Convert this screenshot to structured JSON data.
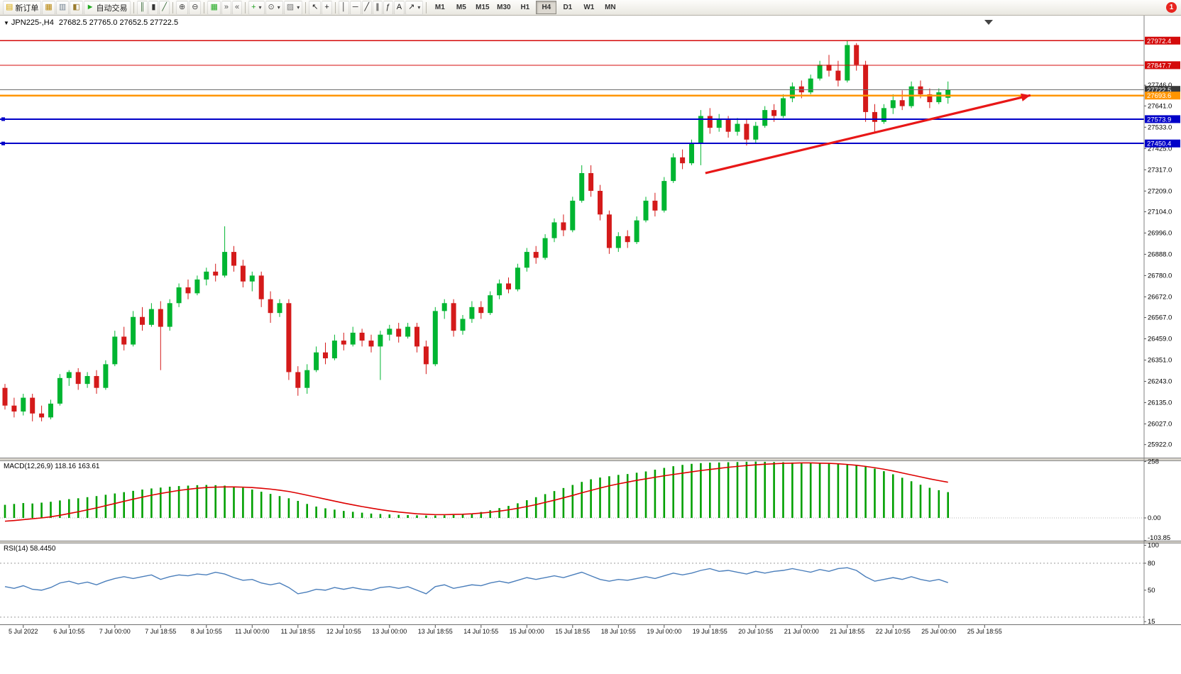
{
  "toolbar": {
    "notification_badge": "1",
    "active_timeframe": "H4",
    "timeframes": [
      "M1",
      "M5",
      "M15",
      "M30",
      "H1",
      "H4",
      "D1",
      "W1",
      "MN"
    ],
    "buttons": [
      {
        "name": "new-order-button",
        "label": "新订单",
        "glyph": "▤",
        "color": "#d7a500"
      },
      {
        "name": "new-chart-button",
        "glyph": "▦",
        "color": "#b8860b"
      },
      {
        "name": "profiles-button",
        "glyph": "▥",
        "color": "#708090"
      },
      {
        "name": "market-watch-button",
        "glyph": "◧",
        "color": "#9a7b2d"
      },
      {
        "name": "auto-trading-button",
        "label": "自动交易",
        "glyph": "►",
        "color": "#22aa22"
      },
      {
        "sep": true
      },
      {
        "name": "bar-chart-button",
        "glyph": "║",
        "color": "#336633"
      },
      {
        "name": "candlestick-chart-button",
        "glyph": "▮",
        "color": "#333333"
      },
      {
        "name": "line-chart-button",
        "glyph": "╱",
        "color": "#336633"
      },
      {
        "sep": true
      },
      {
        "name": "zoom-in-button",
        "glyph": "⊕",
        "color": "#444444"
      },
      {
        "name": "zoom-out-button",
        "glyph": "⊖",
        "color": "#444444"
      },
      {
        "sep": true
      },
      {
        "name": "tile-windows-button",
        "glyph": "▦",
        "color": "#22aa22"
      },
      {
        "name": "auto-scroll-button",
        "glyph": "»",
        "color": "#555555"
      },
      {
        "name": "chart-shift-button",
        "glyph": "«",
        "color": "#555555"
      },
      {
        "sep": true
      },
      {
        "name": "indicators-button",
        "glyph": "+",
        "color": "#1e9e1e",
        "caret": true
      },
      {
        "name": "periods-button",
        "glyph": "⊙",
        "color": "#555555",
        "caret": true
      },
      {
        "name": "templates-button",
        "glyph": "▨",
        "color": "#777777",
        "caret": true
      },
      {
        "sep": true
      },
      {
        "name": "cursor-button",
        "glyph": "↖",
        "color": "#222222"
      },
      {
        "name": "crosshair-button",
        "glyph": "+",
        "color": "#222222"
      },
      {
        "sep": true
      },
      {
        "name": "vertical-line-button",
        "glyph": "│",
        "color": "#222222"
      },
      {
        "name": "horizontal-line-button",
        "glyph": "─",
        "color": "#222222"
      },
      {
        "name": "trendline-button",
        "glyph": "╱",
        "color": "#222222"
      },
      {
        "name": "channel-button",
        "glyph": "∥",
        "color": "#222222"
      },
      {
        "name": "fibonacci-button",
        "glyph": "ƒ",
        "color": "#222222"
      },
      {
        "name": "text-button",
        "glyph": "A",
        "color": "#222222"
      },
      {
        "name": "arrows-button",
        "glyph": "↗",
        "color": "#222222",
        "caret": true
      },
      {
        "sep": true
      },
      {
        "type": "timeframes"
      }
    ]
  },
  "chart": {
    "title": "JPN225-,H4",
    "ohlc_text": "27682.5 27765.0 27652.5 27722.5"
  },
  "chart_data": {
    "type": "candlestick",
    "symbol": "JPN225-",
    "timeframe": "H4",
    "colors": {
      "bull": "#00b531",
      "bear": "#d41a1a"
    },
    "candles": [
      [
        26210,
        26230,
        26100,
        26120
      ],
      [
        26120,
        26160,
        26060,
        26090
      ],
      [
        26090,
        26180,
        26070,
        26160
      ],
      [
        26160,
        26180,
        26040,
        26080
      ],
      [
        26080,
        26120,
        26040,
        26060
      ],
      [
        26060,
        26150,
        26050,
        26130
      ],
      [
        26130,
        26280,
        26120,
        26260
      ],
      [
        26260,
        26300,
        26220,
        26290
      ],
      [
        26290,
        26310,
        26200,
        26230
      ],
      [
        26230,
        26290,
        26210,
        26270
      ],
      [
        26270,
        26300,
        26180,
        26210
      ],
      [
        26210,
        26350,
        26200,
        26330
      ],
      [
        26330,
        26500,
        26320,
        26470
      ],
      [
        26470,
        26520,
        26400,
        26430
      ],
      [
        26430,
        26600,
        26420,
        26570
      ],
      [
        26570,
        26620,
        26500,
        26530
      ],
      [
        26530,
        26640,
        26520,
        26610
      ],
      [
        26610,
        26650,
        26300,
        26520
      ],
      [
        26520,
        26660,
        26500,
        26640
      ],
      [
        26640,
        26740,
        26620,
        26720
      ],
      [
        26720,
        26760,
        26660,
        26690
      ],
      [
        26690,
        26780,
        26680,
        26760
      ],
      [
        26760,
        26820,
        26730,
        26800
      ],
      [
        26800,
        26840,
        26750,
        26780
      ],
      [
        26780,
        27030,
        26770,
        26900
      ],
      [
        26900,
        26930,
        26800,
        26830
      ],
      [
        26830,
        26860,
        26720,
        26750
      ],
      [
        26750,
        26800,
        26700,
        26780
      ],
      [
        26780,
        26800,
        26620,
        26660
      ],
      [
        26660,
        26700,
        26540,
        26590
      ],
      [
        26590,
        26660,
        26570,
        26640
      ],
      [
        26640,
        26660,
        26250,
        26290
      ],
      [
        26290,
        26320,
        26170,
        26210
      ],
      [
        26210,
        26330,
        26180,
        26300
      ],
      [
        26300,
        26420,
        26290,
        26390
      ],
      [
        26390,
        26440,
        26330,
        26360
      ],
      [
        26360,
        26480,
        26350,
        26450
      ],
      [
        26450,
        26490,
        26400,
        26430
      ],
      [
        26430,
        26520,
        26420,
        26490
      ],
      [
        26490,
        26510,
        26420,
        26450
      ],
      [
        26450,
        26480,
        26390,
        26420
      ],
      [
        26420,
        26500,
        26250,
        26480
      ],
      [
        26480,
        26530,
        26450,
        26510
      ],
      [
        26510,
        26540,
        26440,
        26470
      ],
      [
        26470,
        26540,
        26460,
        26520
      ],
      [
        26520,
        26540,
        26390,
        26420
      ],
      [
        26420,
        26450,
        26280,
        26330
      ],
      [
        26330,
        26620,
        26320,
        26600
      ],
      [
        26600,
        26660,
        26560,
        26640
      ],
      [
        26640,
        26660,
        26470,
        26500
      ],
      [
        26500,
        26580,
        26480,
        26560
      ],
      [
        26560,
        26650,
        26540,
        26620
      ],
      [
        26620,
        26650,
        26560,
        26590
      ],
      [
        26590,
        26700,
        26580,
        26680
      ],
      [
        26680,
        26760,
        26660,
        26740
      ],
      [
        26740,
        26770,
        26690,
        26710
      ],
      [
        26710,
        26840,
        26700,
        26820
      ],
      [
        26820,
        26920,
        26800,
        26900
      ],
      [
        26900,
        26930,
        26840,
        26870
      ],
      [
        26870,
        26990,
        26860,
        26970
      ],
      [
        26970,
        27070,
        26950,
        27050
      ],
      [
        27050,
        27090,
        26980,
        27010
      ],
      [
        27010,
        27180,
        27000,
        27160
      ],
      [
        27160,
        27340,
        27150,
        27300
      ],
      [
        27300,
        27340,
        27180,
        27210
      ],
      [
        27210,
        27240,
        27060,
        27090
      ],
      [
        27090,
        27110,
        26890,
        26920
      ],
      [
        26920,
        27000,
        26900,
        26980
      ],
      [
        26980,
        27010,
        26920,
        26950
      ],
      [
        26950,
        27080,
        26940,
        27060
      ],
      [
        27060,
        27180,
        27050,
        27160
      ],
      [
        27160,
        27200,
        27080,
        27110
      ],
      [
        27110,
        27280,
        27100,
        27260
      ],
      [
        27260,
        27400,
        27250,
        27380
      ],
      [
        27380,
        27420,
        27320,
        27350
      ],
      [
        27350,
        27470,
        27340,
        27450
      ],
      [
        27450,
        27620,
        27340,
        27590
      ],
      [
        27590,
        27630,
        27500,
        27530
      ],
      [
        27530,
        27600,
        27510,
        27570
      ],
      [
        27570,
        27590,
        27480,
        27510
      ],
      [
        27510,
        27580,
        27490,
        27550
      ],
      [
        27550,
        27570,
        27440,
        27470
      ],
      [
        27470,
        27560,
        27450,
        27540
      ],
      [
        27540,
        27640,
        27530,
        27620
      ],
      [
        27620,
        27650,
        27560,
        27590
      ],
      [
        27590,
        27700,
        27580,
        27680
      ],
      [
        27680,
        27760,
        27660,
        27740
      ],
      [
        27740,
        27770,
        27680,
        27710
      ],
      [
        27710,
        27800,
        27700,
        27780
      ],
      [
        27780,
        27870,
        27770,
        27850
      ],
      [
        27850,
        27900,
        27790,
        27820
      ],
      [
        27820,
        27870,
        27740,
        27770
      ],
      [
        27770,
        27975,
        27760,
        27950
      ],
      [
        27950,
        27960,
        27820,
        27850
      ],
      [
        27850,
        27870,
        27560,
        27610
      ],
      [
        27610,
        27650,
        27510,
        27560
      ],
      [
        27560,
        27650,
        27550,
        27630
      ],
      [
        27630,
        27700,
        27600,
        27670
      ],
      [
        27670,
        27720,
        27620,
        27640
      ],
      [
        27640,
        27765,
        27630,
        27740
      ],
      [
        27740,
        27770,
        27680,
        27700
      ],
      [
        27700,
        27730,
        27630,
        27660
      ],
      [
        27660,
        27730,
        27650,
        27710
      ],
      [
        27682.5,
        27765,
        27652.5,
        27722.5
      ]
    ],
    "time_labels": [
      {
        "text": "5 Jul 2022",
        "candle": 2
      },
      {
        "text": "6 Jul 10:55",
        "candle": 7
      },
      {
        "text": "7 Jul 00:00",
        "candle": 12
      },
      {
        "text": "7 Jul 18:55",
        "candle": 17
      },
      {
        "text": "8 Jul 10:55",
        "candle": 22
      },
      {
        "text": "11 Jul 00:00",
        "candle": 27
      },
      {
        "text": "11 Jul 18:55",
        "candle": 32
      },
      {
        "text": "12 Jul 10:55",
        "candle": 37
      },
      {
        "text": "13 Jul 00:00",
        "candle": 42
      },
      {
        "text": "13 Jul 18:55",
        "candle": 47
      },
      {
        "text": "14 Jul 10:55",
        "candle": 52
      },
      {
        "text": "15 Jul 00:00",
        "candle": 57
      },
      {
        "text": "15 Jul 18:55",
        "candle": 62
      },
      {
        "text": "18 Jul 10:55",
        "candle": 67
      },
      {
        "text": "19 Jul 00:00",
        "candle": 72
      },
      {
        "text": "19 Jul 18:55",
        "candle": 77
      },
      {
        "text": "20 Jul 10:55",
        "candle": 82
      },
      {
        "text": "21 Jul 00:00",
        "candle": 87
      },
      {
        "text": "21 Jul 18:55",
        "candle": 92
      },
      {
        "text": "22 Jul 10:55",
        "candle": 97
      },
      {
        "text": "25 Jul 00:00",
        "candle": 102
      },
      {
        "text": "25 Jul 18:55",
        "candle": 107
      }
    ],
    "price_axis": {
      "min": 25856,
      "max": 28085,
      "ticks": [
        "27746.0",
        "27641.0",
        "27533.0",
        "27425.0",
        "27317.0",
        "27209.0",
        "27104.0",
        "26996.0",
        "26888.0",
        "26780.0",
        "26672.0",
        "26567.0",
        "26459.0",
        "26351.0",
        "26243.0",
        "26135.0",
        "26027.0",
        "25922.0"
      ],
      "badges": [
        {
          "text": "27972.4",
          "color": "#d40b0b"
        },
        {
          "text": "27847.7",
          "color": "#d40b0b"
        },
        {
          "text": "27722.5",
          "color": "#3a3a3a"
        },
        {
          "text": "27693.6",
          "color": "#ff9500"
        },
        {
          "text": "27573.9",
          "color": "#0000c8"
        },
        {
          "text": "27450.4",
          "color": "#0000c8"
        }
      ]
    },
    "levels": [
      {
        "name": "resistance-line-1",
        "price": 27972.4,
        "color": "#d40b0b",
        "w": 1.2,
        "interactable": true
      },
      {
        "name": "resistance-line-2",
        "price": 27847.7,
        "color": "#d40b0b",
        "w": 1.2,
        "interactable": true
      },
      {
        "name": "bid-price-line",
        "price": 27722.5,
        "color": "#6e6e6e",
        "w": 1,
        "interactable": false
      },
      {
        "name": "orange-level-line",
        "price": 27693.6,
        "color": "#ff9500",
        "w": 2.4,
        "interactable": true
      },
      {
        "name": "support-line-1",
        "price": 27573.9,
        "color": "#0000c8",
        "w": 2,
        "handles": true,
        "interactable": true
      },
      {
        "name": "support-line-2",
        "price": 27450.4,
        "color": "#0000c8",
        "w": 2,
        "handles": true,
        "interactable": true
      }
    ],
    "trend_arrow": {
      "from": {
        "candle": 76.5,
        "price": 27300
      },
      "to": {
        "candle": 112,
        "price": 27695
      },
      "color": "#e81717"
    },
    "macd": {
      "label": "MACD(12,26,9) 118.16 163.61",
      "colors": {
        "histogram": "#00a000",
        "signal": "#dd0000"
      },
      "scale": [
        {
          "text": "258",
          "value": 258
        },
        {
          "text": "0.00",
          "value": 0
        },
        {
          "text": "-103.85",
          "value": -103.85
        }
      ],
      "histogram": [
        60,
        64,
        68,
        66,
        70,
        74,
        80,
        86,
        90,
        95,
        100,
        106,
        112,
        118,
        124,
        130,
        135,
        139,
        143,
        146,
        148,
        150,
        151,
        150,
        148,
        144,
        138,
        130,
        120,
        110,
        100,
        90,
        78,
        64,
        52,
        44,
        38,
        32,
        28,
        24,
        20,
        18,
        16,
        14,
        13,
        12,
        11,
        11,
        12,
        14,
        17,
        21,
        27,
        35,
        45,
        55,
        67,
        81,
        95,
        109,
        123,
        137,
        151,
        165,
        177,
        185,
        191,
        197,
        201,
        207,
        213,
        221,
        229,
        237,
        243,
        248,
        251,
        253,
        254,
        255,
        256,
        257,
        258,
        257,
        256,
        255,
        254,
        253,
        252,
        251,
        250,
        249,
        247,
        243,
        236,
        226,
        214,
        200,
        184,
        168,
        152,
        138,
        127,
        118.16
      ],
      "signal": [
        -15,
        -12,
        -8,
        -4,
        0,
        5,
        12,
        20,
        28,
        37,
        46,
        56,
        66,
        76,
        86,
        95,
        104,
        112,
        119,
        126,
        131,
        136,
        139,
        141,
        142,
        142,
        141,
        139,
        136,
        132,
        127,
        121,
        113,
        104,
        95,
        86,
        77,
        68,
        60,
        52,
        45,
        38,
        32,
        27,
        23,
        19,
        17,
        15,
        15,
        16,
        17,
        19,
        22,
        26,
        31,
        37,
        44,
        52,
        61,
        71,
        81,
        92,
        103,
        115,
        126,
        137,
        147,
        156,
        164,
        172,
        179,
        186,
        193,
        199,
        205,
        211,
        217,
        222,
        227,
        232,
        236,
        240,
        243,
        246,
        248,
        250,
        251,
        252,
        252,
        251,
        250,
        248,
        245,
        241,
        236,
        230,
        223,
        215,
        206,
        197,
        188,
        179,
        171,
        163.61
      ]
    },
    "rsi": {
      "label": "RSI(14) 58.4450",
      "color": "#4a7ebb",
      "levels": [
        80,
        20
      ],
      "scale": [
        {
          "text": "100",
          "value": 100
        },
        {
          "text": "80",
          "value": 80
        },
        {
          "text": "50",
          "value": 50
        },
        {
          "text": "15",
          "value": 15
        }
      ],
      "values": [
        54,
        52,
        55,
        51,
        50,
        53,
        58,
        60,
        57,
        59,
        56,
        60,
        63,
        65,
        63,
        65,
        67,
        62,
        65,
        67,
        66,
        68,
        67,
        70,
        68,
        64,
        61,
        62,
        58,
        56,
        58,
        53,
        46,
        48,
        51,
        50,
        53,
        51,
        53,
        51,
        50,
        53,
        54,
        52,
        54,
        50,
        46,
        54,
        56,
        52,
        54,
        56,
        55,
        58,
        60,
        58,
        61,
        64,
        62,
        64,
        66,
        64,
        67,
        70,
        66,
        62,
        60,
        62,
        61,
        63,
        65,
        63,
        66,
        69,
        67,
        69,
        72,
        74,
        71,
        72,
        70,
        68,
        71,
        69,
        71,
        72,
        74,
        72,
        70,
        73,
        71,
        74,
        75,
        72,
        65,
        60,
        62,
        64,
        62,
        65,
        62,
        60,
        62,
        58.445
      ]
    }
  }
}
